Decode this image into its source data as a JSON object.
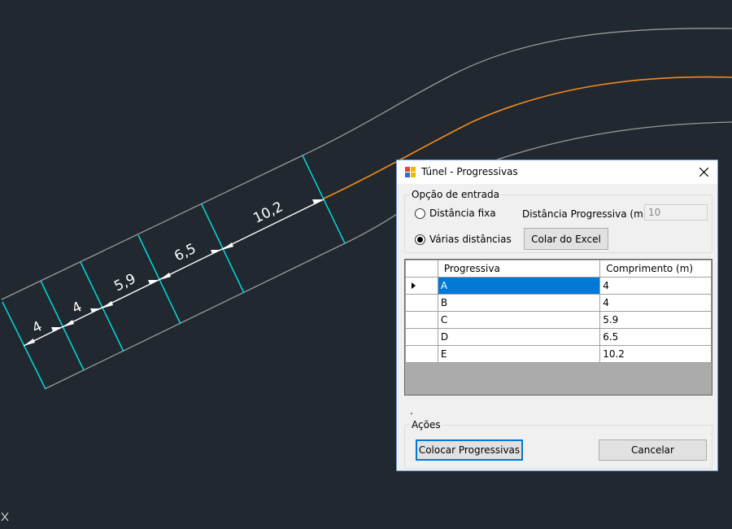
{
  "cad": {
    "dimensions": [
      "4",
      "4",
      "5,9",
      "6,5",
      "10,2"
    ],
    "line_colors": {
      "background": "#212830",
      "cyan": "#00d9d9",
      "orange": "#f28a1e",
      "gray": "#9a9a9a",
      "dim": "#ffffff"
    }
  },
  "dialog": {
    "title": "Túnel - Progressivas",
    "input_group": {
      "legend": "Opção de entrada",
      "radio_fixed": "Distância fixa",
      "radio_multi": "Várias distâncias",
      "selected": "Várias distâncias",
      "distance_label": "Distância Progressiva (m):",
      "distance_value": "10",
      "paste_button": "Colar do Excel"
    },
    "grid": {
      "columns": [
        "Progressiva",
        "Comprimento (m)"
      ],
      "rows": [
        {
          "progressiva": "A",
          "comprimento": "4"
        },
        {
          "progressiva": "B",
          "comprimento": "4"
        },
        {
          "progressiva": "C",
          "comprimento": "5.9"
        },
        {
          "progressiva": "D",
          "comprimento": "6.5"
        },
        {
          "progressiva": "E",
          "comprimento": "10.2"
        }
      ],
      "selected_row": "A"
    },
    "stray_text": ".",
    "actions": {
      "legend": "Ações",
      "place_button": "Colocar Progressivas",
      "cancel_button": "Cancelar"
    }
  }
}
